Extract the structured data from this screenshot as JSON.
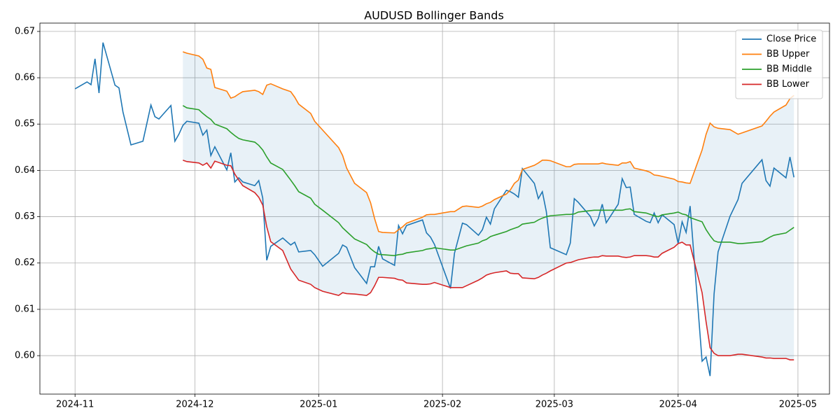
{
  "chart_data": {
    "type": "line",
    "title": "AUDUSD Bollinger Bands",
    "x": [
      0,
      3,
      4,
      5,
      6,
      7,
      10,
      11,
      12,
      14,
      17,
      19,
      20,
      21,
      24,
      25,
      26,
      27,
      28,
      31,
      32,
      33,
      34,
      35,
      38,
      39,
      40,
      41,
      42,
      45,
      46,
      47,
      48,
      49,
      52,
      54,
      55,
      56,
      59,
      60,
      62,
      66,
      67,
      68,
      70,
      73,
      74,
      75,
      76,
      77,
      80,
      81,
      82,
      83,
      87,
      88,
      89,
      90,
      94,
      95,
      97,
      98,
      101,
      102,
      103,
      104,
      105,
      108,
      109,
      110,
      111,
      112,
      115,
      116,
      117,
      118,
      119,
      123,
      124,
      125,
      126,
      129,
      130,
      131,
      132,
      133,
      136,
      137,
      138,
      139,
      140,
      143,
      144,
      145,
      146,
      147,
      150,
      151,
      152,
      153,
      154,
      157,
      158,
      159,
      160,
      161,
      164,
      166,
      167,
      172,
      173,
      174,
      175,
      178,
      179,
      180
    ],
    "series": [
      {
        "name": "Close Price",
        "color": "#1f77b4",
        "values": [
          0.6576,
          0.6591,
          0.6585,
          0.6641,
          0.6567,
          0.6676,
          0.6584,
          0.6578,
          0.6526,
          0.6455,
          0.6463,
          0.6541,
          0.6516,
          0.6511,
          0.654,
          0.6463,
          0.6478,
          0.6497,
          0.6506,
          0.6502,
          0.6476,
          0.6487,
          0.6432,
          0.6451,
          0.6401,
          0.6438,
          0.6375,
          0.6384,
          0.6375,
          0.6367,
          0.6378,
          0.634,
          0.6206,
          0.6236,
          0.6254,
          0.6239,
          0.6245,
          0.6224,
          0.6227,
          0.6218,
          0.6193,
          0.6221,
          0.6239,
          0.6234,
          0.619,
          0.6156,
          0.6192,
          0.6192,
          0.6236,
          0.6209,
          0.6195,
          0.6281,
          0.6263,
          0.6281,
          0.6293,
          0.6265,
          0.6256,
          0.624,
          0.6145,
          0.6221,
          0.6286,
          0.6283,
          0.626,
          0.6272,
          0.6299,
          0.6284,
          0.6317,
          0.6357,
          0.6354,
          0.6349,
          0.6342,
          0.6404,
          0.6372,
          0.6339,
          0.6354,
          0.6311,
          0.6233,
          0.6218,
          0.6243,
          0.6339,
          0.6331,
          0.6301,
          0.628,
          0.6296,
          0.6327,
          0.6287,
          0.6327,
          0.6382,
          0.6363,
          0.6364,
          0.6305,
          0.629,
          0.6287,
          0.6308,
          0.6287,
          0.6304,
          0.6283,
          0.6242,
          0.6289,
          0.6266,
          0.6323,
          0.5988,
          0.5997,
          0.5956,
          0.6133,
          0.6224,
          0.6301,
          0.6337,
          0.6372,
          0.6423,
          0.6378,
          0.6366,
          0.6405,
          0.6384,
          0.6429,
          0.6385
        ]
      },
      {
        "name": "BB Upper",
        "color": "#ff7f0e",
        "values": [
          null,
          null,
          null,
          null,
          null,
          null,
          null,
          null,
          null,
          null,
          null,
          null,
          null,
          null,
          null,
          null,
          null,
          0.6656,
          0.6653,
          0.6647,
          0.664,
          0.6621,
          0.6618,
          0.6579,
          0.6571,
          0.6556,
          0.6559,
          0.6565,
          0.657,
          0.6573,
          0.657,
          0.6564,
          0.6584,
          0.6587,
          0.6576,
          0.657,
          0.6558,
          0.6543,
          0.6523,
          0.6506,
          0.6487,
          0.6449,
          0.6432,
          0.6405,
          0.6372,
          0.6352,
          0.633,
          0.6296,
          0.6268,
          0.6266,
          0.6265,
          0.6272,
          0.6278,
          0.6286,
          0.6299,
          0.6304,
          0.6305,
          0.6305,
          0.6311,
          0.6311,
          0.6322,
          0.6323,
          0.632,
          0.6323,
          0.6328,
          0.6331,
          0.6337,
          0.6349,
          0.6358,
          0.6372,
          0.6379,
          0.6402,
          0.6411,
          0.6416,
          0.6422,
          0.6422,
          0.6421,
          0.6408,
          0.6408,
          0.6413,
          0.6414,
          0.6414,
          0.6414,
          0.6414,
          0.6416,
          0.6414,
          0.6411,
          0.6416,
          0.6416,
          0.6419,
          0.6405,
          0.6399,
          0.6396,
          0.639,
          0.6389,
          0.6387,
          0.6381,
          0.6376,
          0.6375,
          0.6373,
          0.6372,
          0.6444,
          0.6478,
          0.6502,
          0.6494,
          0.6491,
          0.6488,
          0.6478,
          0.6481,
          0.6496,
          0.6506,
          0.6517,
          0.6526,
          0.6541,
          0.6555,
          0.6562
        ]
      },
      {
        "name": "BB Middle",
        "color": "#2ca02c",
        "values": [
          null,
          null,
          null,
          null,
          null,
          null,
          null,
          null,
          null,
          null,
          null,
          null,
          null,
          null,
          null,
          null,
          null,
          0.654,
          0.6535,
          0.6531,
          0.6523,
          0.6516,
          0.651,
          0.65,
          0.649,
          0.6482,
          0.6475,
          0.6469,
          0.6466,
          0.6461,
          0.6454,
          0.6444,
          0.6429,
          0.6416,
          0.6402,
          0.6379,
          0.6367,
          0.6354,
          0.634,
          0.6327,
          0.6314,
          0.6287,
          0.6276,
          0.6268,
          0.6252,
          0.624,
          0.6231,
          0.6224,
          0.6219,
          0.6218,
          0.6216,
          0.6218,
          0.6219,
          0.6222,
          0.6227,
          0.623,
          0.6231,
          0.6233,
          0.6228,
          0.6228,
          0.6234,
          0.6237,
          0.6243,
          0.6248,
          0.6251,
          0.6257,
          0.626,
          0.6268,
          0.6272,
          0.6275,
          0.6278,
          0.6284,
          0.6288,
          0.6293,
          0.6297,
          0.63,
          0.6302,
          0.6305,
          0.6305,
          0.6306,
          0.631,
          0.6313,
          0.6314,
          0.6314,
          0.6314,
          0.6314,
          0.6314,
          0.6314,
          0.6316,
          0.6317,
          0.6311,
          0.6308,
          0.6305,
          0.6302,
          0.63,
          0.6304,
          0.6308,
          0.631,
          0.6306,
          0.6304,
          0.6298,
          0.6289,
          0.6272,
          0.6259,
          0.6248,
          0.6245,
          0.6245,
          0.6242,
          0.6242,
          0.6246,
          0.6251,
          0.6256,
          0.626,
          0.6265,
          0.6271,
          0.6277
        ]
      },
      {
        "name": "BB Lower",
        "color": "#d62728",
        "values": [
          null,
          null,
          null,
          null,
          null,
          null,
          null,
          null,
          null,
          null,
          null,
          null,
          null,
          null,
          null,
          null,
          null,
          0.6422,
          0.6419,
          0.6416,
          0.6411,
          0.6416,
          0.6405,
          0.642,
          0.6411,
          0.641,
          0.6392,
          0.6379,
          0.6367,
          0.6352,
          0.6342,
          0.6325,
          0.6278,
          0.6246,
          0.6227,
          0.6187,
          0.6175,
          0.6163,
          0.6154,
          0.6147,
          0.6139,
          0.613,
          0.6136,
          0.6134,
          0.6133,
          0.613,
          0.6136,
          0.6151,
          0.6169,
          0.6169,
          0.6167,
          0.6164,
          0.6163,
          0.6157,
          0.6154,
          0.6154,
          0.6155,
          0.6158,
          0.6147,
          0.6147,
          0.6147,
          0.6151,
          0.6163,
          0.6168,
          0.6174,
          0.6177,
          0.6179,
          0.6183,
          0.6178,
          0.6177,
          0.6177,
          0.6168,
          0.6166,
          0.6169,
          0.6174,
          0.6178,
          0.6183,
          0.62,
          0.6201,
          0.6204,
          0.6207,
          0.6212,
          0.6213,
          0.6213,
          0.6216,
          0.6215,
          0.6215,
          0.6213,
          0.6212,
          0.6213,
          0.6216,
          0.6216,
          0.6215,
          0.6213,
          0.6213,
          0.6221,
          0.6234,
          0.6242,
          0.6245,
          0.6239,
          0.6239,
          0.6136,
          0.6073,
          0.6017,
          0.6005,
          0.6,
          0.6,
          0.6003,
          0.6003,
          0.5997,
          0.5995,
          0.5995,
          0.5994,
          0.5994,
          0.5991,
          0.5991
        ]
      }
    ],
    "band_fill": "#1f77b4",
    "band_fill_opacity": 0.1,
    "xlim": [
      -8.8,
      188.9
    ],
    "xticks": [
      {
        "value": 0,
        "label": "2024-11"
      },
      {
        "value": 30,
        "label": "2024-12"
      },
      {
        "value": 61,
        "label": "2025-01"
      },
      {
        "value": 92,
        "label": "2025-02"
      },
      {
        "value": 120,
        "label": "2025-03"
      },
      {
        "value": 151,
        "label": "2025-04"
      },
      {
        "value": 181,
        "label": "2025-05"
      }
    ],
    "ylim": [
      0.5917,
      0.6718
    ],
    "yticks": [
      {
        "value": 0.6,
        "label": "0.60"
      },
      0.61,
      0.62,
      0.63,
      0.64,
      0.65,
      0.66,
      0.67
    ],
    "grid": true,
    "legend": "upper right"
  }
}
